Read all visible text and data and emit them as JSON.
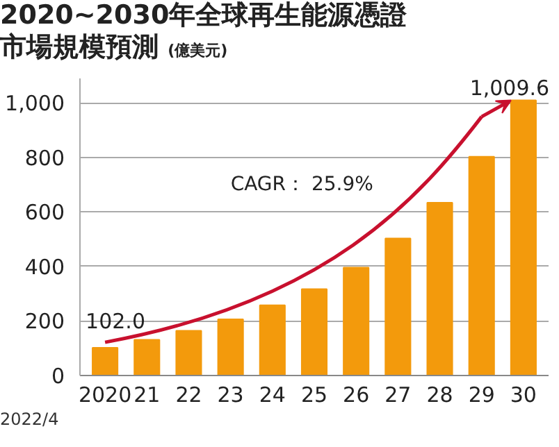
{
  "chart_data": {
    "type": "bar",
    "title": "2020~2030年全球再生能源憑證市場規模預測",
    "ylabel": "(億美元)",
    "categories": [
      "2020",
      "21",
      "22",
      "23",
      "24",
      "25",
      "26",
      "27",
      "28",
      "29",
      "30"
    ],
    "values": [
      102.0,
      131,
      164,
      206,
      258,
      317,
      396,
      503,
      634,
      803,
      1009.6
    ],
    "value_labels": [
      "102.0",
      null,
      null,
      null,
      null,
      null,
      null,
      null,
      null,
      null,
      "1,009.6"
    ],
    "color": "#f39a0c",
    "ylim": [
      0,
      1090
    ],
    "yticks": [
      0,
      200,
      400,
      600,
      800,
      {
        "value": 1000,
        "label": "1,000"
      }
    ],
    "grid": "y",
    "annotations": [
      "CAGR： 25.9%",
      "2022/4"
    ]
  }
}
